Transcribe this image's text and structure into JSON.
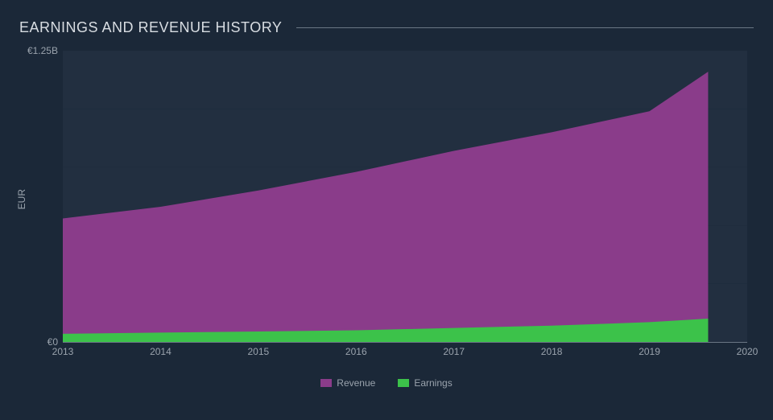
{
  "title": "EARNINGS AND REVENUE HISTORY",
  "ylabel": "EUR",
  "type": "area",
  "background_color": "#1b2838",
  "plot_background_color": "#222f40",
  "grid_color": "#1b2838",
  "axis_line_color": "#6a7684",
  "text_color": "#9aa3ad",
  "title_color": "#d8dde2",
  "title_fontsize": 18,
  "label_fontsize": 12,
  "xlim": [
    2013,
    2020
  ],
  "ylim": [
    0,
    1.25
  ],
  "yticks": [
    {
      "value": 0,
      "label": "€0"
    },
    {
      "value": 1.25,
      "label": "€1.25B"
    }
  ],
  "ygrid_step": 0.25,
  "xticks": [
    2013,
    2014,
    2015,
    2016,
    2017,
    2018,
    2019,
    2020
  ],
  "series": [
    {
      "name": "Revenue",
      "color": "#8a3c8a",
      "points": [
        {
          "x": 2013,
          "y": 0.53
        },
        {
          "x": 2014,
          "y": 0.58
        },
        {
          "x": 2015,
          "y": 0.65
        },
        {
          "x": 2016,
          "y": 0.73
        },
        {
          "x": 2017,
          "y": 0.82
        },
        {
          "x": 2018,
          "y": 0.9
        },
        {
          "x": 2019,
          "y": 0.99
        },
        {
          "x": 2019.6,
          "y": 1.16
        }
      ]
    },
    {
      "name": "Earnings",
      "color": "#3cc24a",
      "points": [
        {
          "x": 2013,
          "y": 0.035
        },
        {
          "x": 2014,
          "y": 0.04
        },
        {
          "x": 2015,
          "y": 0.045
        },
        {
          "x": 2016,
          "y": 0.05
        },
        {
          "x": 2017,
          "y": 0.06
        },
        {
          "x": 2018,
          "y": 0.07
        },
        {
          "x": 2019,
          "y": 0.085
        },
        {
          "x": 2019.6,
          "y": 0.1
        }
      ]
    }
  ],
  "legend": {
    "items": [
      {
        "label": "Revenue",
        "color": "#8a3c8a"
      },
      {
        "label": "Earnings",
        "color": "#3cc24a"
      }
    ]
  }
}
